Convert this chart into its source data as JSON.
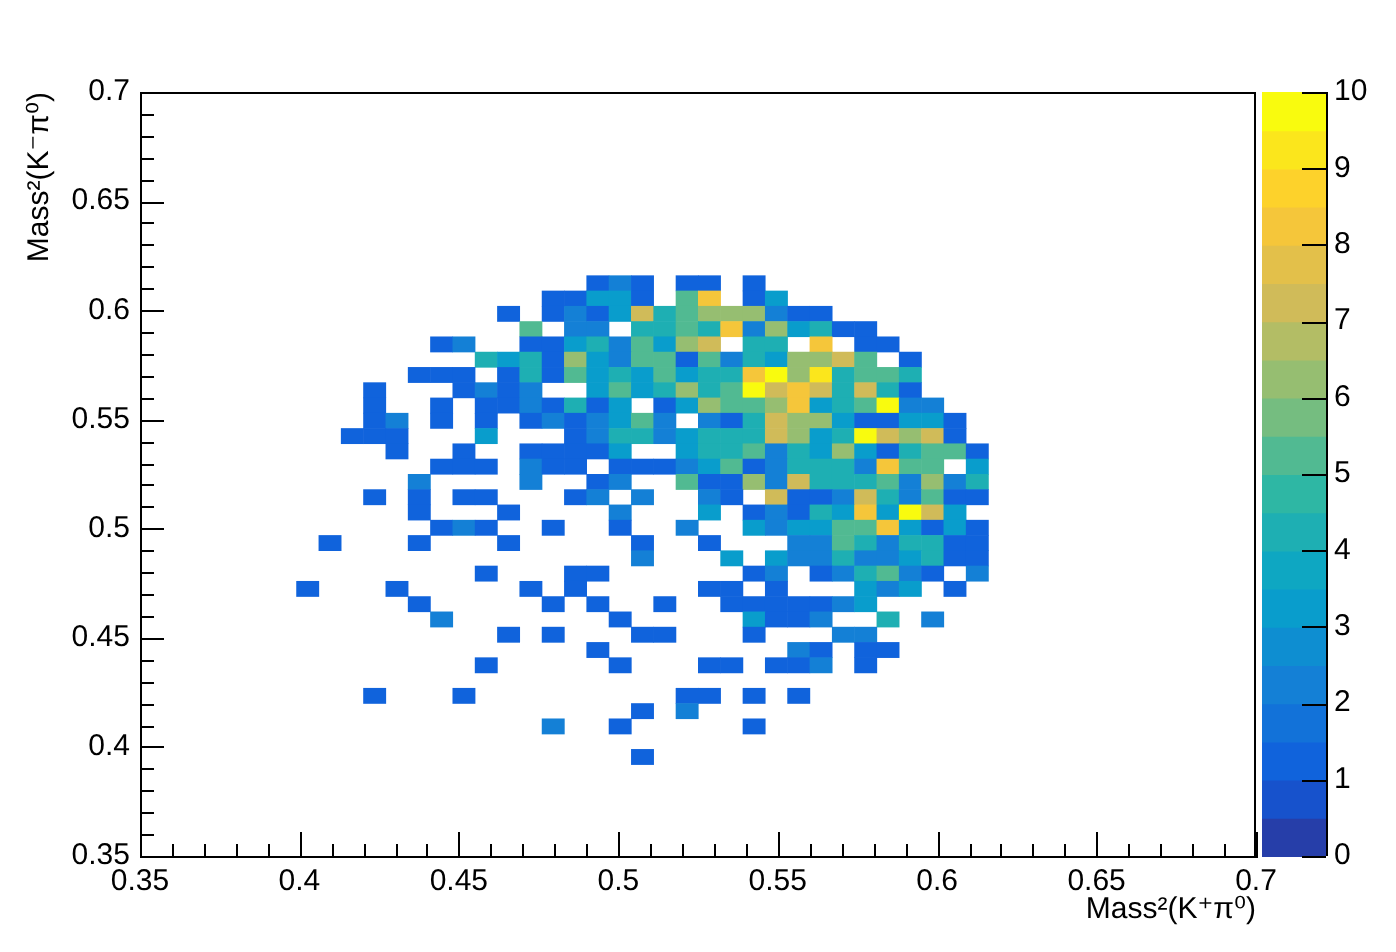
{
  "chart_data": {
    "type": "scatter",
    "marker": "square",
    "xlabel": "Mass²(K⁺π⁰)",
    "ylabel": "Mass²(K⁻π⁰)",
    "x": [
      0.4935,
      0.5005,
      0.5075,
      0.5215,
      0.5285,
      0.5425,
      0.4795,
      0.4865,
      0.4935,
      0.5005,
      0.5075,
      0.5215,
      0.5285,
      0.5425,
      0.5495,
      0.4655,
      0.4795,
      0.4865,
      0.4935,
      0.5005,
      0.5075,
      0.5145,
      0.5215,
      0.5285,
      0.5355,
      0.5425,
      0.5495,
      0.5565,
      0.5635,
      0.4725,
      0.4865,
      0.4935,
      0.5075,
      0.5145,
      0.5215,
      0.5285,
      0.5355,
      0.5425,
      0.5495,
      0.5565,
      0.5635,
      0.5705,
      0.5775,
      0.4445,
      0.4515,
      0.4725,
      0.4795,
      0.4865,
      0.4935,
      0.5005,
      0.5075,
      0.5145,
      0.5215,
      0.5285,
      0.5425,
      0.5495,
      0.5635,
      0.5775,
      0.5845,
      0.4585,
      0.4655,
      0.4725,
      0.4795,
      0.4865,
      0.4935,
      0.5005,
      0.5075,
      0.5145,
      0.5215,
      0.5285,
      0.5355,
      0.5425,
      0.5495,
      0.5565,
      0.5635,
      0.5705,
      0.5775,
      0.5915,
      0.4375,
      0.4445,
      0.4515,
      0.4655,
      0.4725,
      0.4795,
      0.4865,
      0.4935,
      0.5005,
      0.5075,
      0.5145,
      0.5215,
      0.5285,
      0.5355,
      0.5425,
      0.5495,
      0.5565,
      0.5635,
      0.5705,
      0.5775,
      0.5845,
      0.5915,
      0.4235,
      0.4515,
      0.4585,
      0.4655,
      0.4725,
      0.4935,
      0.5005,
      0.5075,
      0.5145,
      0.5215,
      0.5285,
      0.5355,
      0.5425,
      0.5495,
      0.5565,
      0.5635,
      0.5705,
      0.5775,
      0.5845,
      0.5915,
      0.4235,
      0.4445,
      0.4585,
      0.4655,
      0.4725,
      0.4795,
      0.4865,
      0.4935,
      0.5005,
      0.5145,
      0.5215,
      0.5285,
      0.5355,
      0.5425,
      0.5495,
      0.5565,
      0.5635,
      0.5705,
      0.5775,
      0.5845,
      0.5915,
      0.5985,
      0.4235,
      0.4305,
      0.4445,
      0.4585,
      0.4725,
      0.4795,
      0.4865,
      0.4935,
      0.5005,
      0.5075,
      0.5145,
      0.5285,
      0.5355,
      0.5425,
      0.5495,
      0.5565,
      0.5635,
      0.5705,
      0.5775,
      0.5845,
      0.5915,
      0.5985,
      0.6055,
      0.4165,
      0.4235,
      0.4305,
      0.4585,
      0.4865,
      0.4935,
      0.5005,
      0.5075,
      0.5145,
      0.5215,
      0.5285,
      0.5355,
      0.5425,
      0.5495,
      0.5565,
      0.5635,
      0.5705,
      0.5775,
      0.5845,
      0.5915,
      0.5985,
      0.6055,
      0.4305,
      0.4515,
      0.4725,
      0.4795,
      0.4865,
      0.4935,
      0.5005,
      0.5215,
      0.5285,
      0.5355,
      0.5425,
      0.5495,
      0.5565,
      0.5635,
      0.5705,
      0.5775,
      0.5845,
      0.5915,
      0.5985,
      0.6055,
      0.6125,
      0.4445,
      0.4515,
      0.4585,
      0.4725,
      0.4795,
      0.4865,
      0.5005,
      0.5075,
      0.5145,
      0.5215,
      0.5285,
      0.5355,
      0.5425,
      0.5495,
      0.5565,
      0.5635,
      0.5705,
      0.5775,
      0.5845,
      0.5915,
      0.5985,
      0.6125,
      0.4375,
      0.4725,
      0.4935,
      0.5005,
      0.5215,
      0.5285,
      0.5355,
      0.5425,
      0.5495,
      0.5565,
      0.5635,
      0.5705,
      0.5775,
      0.5845,
      0.5915,
      0.5985,
      0.6055,
      0.6125,
      0.4235,
      0.4375,
      0.4515,
      0.4585,
      0.4865,
      0.4935,
      0.5075,
      0.5285,
      0.5355,
      0.5495,
      0.5565,
      0.5635,
      0.5705,
      0.5775,
      0.5845,
      0.5915,
      0.5985,
      0.6055,
      0.6125,
      0.4375,
      0.4655,
      0.5005,
      0.5285,
      0.5425,
      0.5495,
      0.5565,
      0.5635,
      0.5705,
      0.5775,
      0.5845,
      0.5915,
      0.5985,
      0.6055,
      0.4445,
      0.4515,
      0.4585,
      0.4795,
      0.5005,
      0.5215,
      0.5425,
      0.5495,
      0.5565,
      0.5635,
      0.5705,
      0.5775,
      0.5845,
      0.5915,
      0.5985,
      0.6055,
      0.6125,
      0.4095,
      0.4375,
      0.4655,
      0.5075,
      0.5285,
      0.5565,
      0.5635,
      0.5705,
      0.5775,
      0.5845,
      0.5915,
      0.5985,
      0.6055,
      0.6125,
      0.5075,
      0.5355,
      0.5495,
      0.5565,
      0.5635,
      0.5705,
      0.5775,
      0.5845,
      0.5915,
      0.5985,
      0.6055,
      0.6125,
      0.4585,
      0.4865,
      0.4935,
      0.5425,
      0.5495,
      0.5635,
      0.5705,
      0.5775,
      0.5845,
      0.5915,
      0.5985,
      0.6125,
      0.4025,
      0.4305,
      0.4725,
      0.4865,
      0.5285,
      0.5355,
      0.5495,
      0.5775,
      0.5845,
      0.5915,
      0.6055,
      0.4375,
      0.4795,
      0.4935,
      0.5145,
      0.5355,
      0.5425,
      0.5495,
      0.5565,
      0.5635,
      0.5705,
      0.5775,
      0.4445,
      0.5005,
      0.5425,
      0.5495,
      0.5565,
      0.5635,
      0.5845,
      0.5985,
      0.4655,
      0.4795,
      0.5075,
      0.5145,
      0.5425,
      0.5705,
      0.5775,
      0.4935,
      0.5565,
      0.5635,
      0.5775,
      0.5845,
      0.4585,
      0.5005,
      0.5285,
      0.5355,
      0.5495,
      0.5565,
      0.5635,
      0.5775,
      0.4235,
      0.4515,
      0.5215,
      0.5285,
      0.5425,
      0.5565,
      0.5075,
      0.5215,
      0.4795,
      0.5005,
      0.5425,
      0.5075
    ],
    "values": [
      0.6125,
      0.6125,
      0.6125,
      0.6125,
      0.6125,
      0.6125,
      0.6055,
      0.6055,
      0.6055,
      0.6055,
      0.6055,
      0.6055,
      0.6055,
      0.6055,
      0.6055,
      0.5985,
      0.5985,
      0.5985,
      0.5985,
      0.5985,
      0.5985,
      0.5985,
      0.5985,
      0.5985,
      0.5985,
      0.5985,
      0.5985,
      0.5985,
      0.5985,
      0.5915,
      0.5915,
      0.5915,
      0.5915,
      0.5915,
      0.5915,
      0.5915,
      0.5915,
      0.5915,
      0.5915,
      0.5915,
      0.5915,
      0.5915,
      0.5915,
      0.5845,
      0.5845,
      0.5845,
      0.5845,
      0.5845,
      0.5845,
      0.5845,
      0.5845,
      0.5845,
      0.5845,
      0.5845,
      0.5845,
      0.5845,
      0.5845,
      0.5845,
      0.5845,
      0.5775,
      0.5775,
      0.5775,
      0.5775,
      0.5775,
      0.5775,
      0.5775,
      0.5775,
      0.5775,
      0.5775,
      0.5775,
      0.5775,
      0.5775,
      0.5775,
      0.5775,
      0.5775,
      0.5775,
      0.5775,
      0.5775,
      0.5705,
      0.5705,
      0.5705,
      0.5705,
      0.5705,
      0.5705,
      0.5705,
      0.5705,
      0.5705,
      0.5705,
      0.5705,
      0.5705,
      0.5705,
      0.5705,
      0.5705,
      0.5705,
      0.5705,
      0.5705,
      0.5705,
      0.5705,
      0.5705,
      0.5705,
      0.5635,
      0.5635,
      0.5635,
      0.5635,
      0.5635,
      0.5635,
      0.5635,
      0.5635,
      0.5635,
      0.5635,
      0.5635,
      0.5635,
      0.5635,
      0.5635,
      0.5635,
      0.5635,
      0.5635,
      0.5635,
      0.5635,
      0.5635,
      0.5565,
      0.5565,
      0.5565,
      0.5565,
      0.5565,
      0.5565,
      0.5565,
      0.5565,
      0.5565,
      0.5565,
      0.5565,
      0.5565,
      0.5565,
      0.5565,
      0.5565,
      0.5565,
      0.5565,
      0.5565,
      0.5565,
      0.5565,
      0.5565,
      0.5565,
      0.5495,
      0.5495,
      0.5495,
      0.5495,
      0.5495,
      0.5495,
      0.5495,
      0.5495,
      0.5495,
      0.5495,
      0.5495,
      0.5495,
      0.5495,
      0.5495,
      0.5495,
      0.5495,
      0.5495,
      0.5495,
      0.5495,
      0.5495,
      0.5495,
      0.5495,
      0.5495,
      0.5425,
      0.5425,
      0.5425,
      0.5425,
      0.5425,
      0.5425,
      0.5425,
      0.5425,
      0.5425,
      0.5425,
      0.5425,
      0.5425,
      0.5425,
      0.5425,
      0.5425,
      0.5425,
      0.5425,
      0.5425,
      0.5425,
      0.5425,
      0.5425,
      0.5425,
      0.5355,
      0.5355,
      0.5355,
      0.5355,
      0.5355,
      0.5355,
      0.5355,
      0.5355,
      0.5355,
      0.5355,
      0.5355,
      0.5355,
      0.5355,
      0.5355,
      0.5355,
      0.5355,
      0.5355,
      0.5355,
      0.5355,
      0.5355,
      0.5355,
      0.5285,
      0.5285,
      0.5285,
      0.5285,
      0.5285,
      0.5285,
      0.5285,
      0.5285,
      0.5285,
      0.5285,
      0.5285,
      0.5285,
      0.5285,
      0.5285,
      0.5285,
      0.5285,
      0.5285,
      0.5285,
      0.5285,
      0.5285,
      0.5285,
      0.5285,
      0.5215,
      0.5215,
      0.5215,
      0.5215,
      0.5215,
      0.5215,
      0.5215,
      0.5215,
      0.5215,
      0.5215,
      0.5215,
      0.5215,
      0.5215,
      0.5215,
      0.5215,
      0.5215,
      0.5215,
      0.5215,
      0.5145,
      0.5145,
      0.5145,
      0.5145,
      0.5145,
      0.5145,
      0.5145,
      0.5145,
      0.5145,
      0.5145,
      0.5145,
      0.5145,
      0.5145,
      0.5145,
      0.5145,
      0.5145,
      0.5145,
      0.5145,
      0.5145,
      0.5075,
      0.5075,
      0.5075,
      0.5075,
      0.5075,
      0.5075,
      0.5075,
      0.5075,
      0.5075,
      0.5075,
      0.5075,
      0.5075,
      0.5075,
      0.5075,
      0.5005,
      0.5005,
      0.5005,
      0.5005,
      0.5005,
      0.5005,
      0.5005,
      0.5005,
      0.5005,
      0.5005,
      0.5005,
      0.5005,
      0.5005,
      0.5005,
      0.5005,
      0.5005,
      0.5005,
      0.4935,
      0.4935,
      0.4935,
      0.4935,
      0.4935,
      0.4935,
      0.4935,
      0.4935,
      0.4935,
      0.4935,
      0.4935,
      0.4935,
      0.4935,
      0.4935,
      0.4865,
      0.4865,
      0.4865,
      0.4865,
      0.4865,
      0.4865,
      0.4865,
      0.4865,
      0.4865,
      0.4865,
      0.4865,
      0.4865,
      0.4795,
      0.4795,
      0.4795,
      0.4795,
      0.4795,
      0.4795,
      0.4795,
      0.4795,
      0.4795,
      0.4795,
      0.4795,
      0.4795,
      0.4725,
      0.4725,
      0.4725,
      0.4725,
      0.4725,
      0.4725,
      0.4725,
      0.4725,
      0.4725,
      0.4725,
      0.4725,
      0.4655,
      0.4655,
      0.4655,
      0.4655,
      0.4655,
      0.4655,
      0.4655,
      0.4655,
      0.4655,
      0.4655,
      0.4655,
      0.4585,
      0.4585,
      0.4585,
      0.4585,
      0.4585,
      0.4585,
      0.4585,
      0.4585,
      0.4515,
      0.4515,
      0.4515,
      0.4515,
      0.4515,
      0.4515,
      0.4515,
      0.4445,
      0.4445,
      0.4445,
      0.4445,
      0.4445,
      0.4375,
      0.4375,
      0.4375,
      0.4375,
      0.4375,
      0.4375,
      0.4375,
      0.4375,
      0.4235,
      0.4235,
      0.4235,
      0.4235,
      0.4235,
      0.4235,
      0.4165,
      0.4165,
      0.4095,
      0.4095,
      0.4095,
      0.3955
    ],
    "cvalues": [
      1,
      2,
      1,
      1,
      1,
      1,
      1,
      1,
      3,
      3,
      1,
      5,
      8,
      1,
      3,
      1,
      1,
      2,
      1,
      3,
      7,
      4,
      5,
      6,
      6,
      6,
      2,
      1,
      1,
      5,
      2,
      2,
      4,
      4,
      5,
      4,
      8,
      2,
      6,
      3,
      4,
      1,
      1,
      1,
      2,
      1,
      1,
      3,
      4,
      2,
      5,
      3,
      6,
      7,
      4,
      4,
      8,
      1,
      1,
      4,
      3,
      4,
      1,
      6,
      3,
      2,
      5,
      5,
      1,
      5,
      2,
      4,
      3,
      6,
      6,
      7,
      5,
      1,
      1,
      1,
      1,
      1,
      4,
      1,
      5,
      3,
      4,
      3,
      5,
      3,
      4,
      4,
      8,
      10,
      6,
      9,
      4,
      5,
      5,
      4,
      1,
      1,
      2,
      1,
      2,
      3,
      5,
      3,
      4,
      6,
      4,
      5,
      10,
      7,
      8,
      7,
      4,
      7,
      4,
      1,
      1,
      1,
      1,
      1,
      2,
      1,
      4,
      1,
      3,
      1,
      3,
      6,
      5,
      5,
      6,
      8,
      3,
      4,
      5,
      10,
      2,
      2,
      1,
      2,
      1,
      1,
      1,
      2,
      1,
      2,
      3,
      5,
      2,
      2,
      1,
      4,
      7,
      6,
      6,
      3,
      1,
      1,
      3,
      3,
      1,
      1,
      1,
      1,
      3,
      1,
      2,
      4,
      4,
      2,
      3,
      4,
      4,
      4,
      7,
      6,
      3,
      4,
      10,
      7,
      6,
      7,
      1,
      1,
      1,
      1,
      1,
      1,
      1,
      3,
      3,
      4,
      4,
      5,
      2,
      4,
      3,
      6,
      3,
      1,
      4,
      5,
      5,
      1,
      1,
      1,
      1,
      2,
      1,
      1,
      1,
      1,
      1,
      2,
      3,
      5,
      1,
      2,
      4,
      4,
      4,
      2,
      8,
      5,
      5,
      3,
      2,
      2,
      1,
      2,
      5,
      1,
      1,
      6,
      2,
      7,
      4,
      4,
      4,
      5,
      2,
      6,
      2,
      4,
      1,
      1,
      1,
      1,
      1,
      2,
      2,
      2,
      1,
      7,
      1,
      1,
      2,
      7,
      4,
      2,
      5,
      1,
      1,
      1,
      1,
      2,
      3,
      1,
      2,
      1,
      4,
      3,
      8,
      3,
      10,
      7,
      3,
      1,
      2,
      1,
      1,
      1,
      2,
      3,
      2,
      3,
      3,
      5,
      5,
      8,
      3,
      1,
      3,
      1,
      1,
      1,
      1,
      1,
      1,
      2,
      2,
      5,
      4,
      2,
      4,
      4,
      1,
      1,
      2,
      3,
      3,
      2,
      2,
      4,
      2,
      2,
      3,
      4,
      1,
      1,
      1,
      1,
      1,
      1,
      2,
      1,
      2,
      4,
      5,
      2,
      1,
      2,
      1,
      1,
      1,
      1,
      1,
      1,
      1,
      3,
      2,
      3,
      1,
      1,
      1,
      1,
      1,
      1,
      1,
      1,
      1,
      1,
      2,
      3,
      2,
      1,
      3,
      1,
      1,
      2,
      4,
      2,
      1,
      1,
      1,
      1,
      1,
      2,
      2,
      1,
      2,
      1,
      1,
      1,
      1,
      1,
      1,
      1,
      1,
      1,
      2,
      1,
      1,
      1,
      1,
      1,
      1,
      1,
      1,
      2,
      2,
      1,
      1,
      1
    ],
    "xlim": [
      0.35,
      0.7
    ],
    "xticks": [
      0.35,
      {
        "value": 0.36,
        "label": null
      },
      {
        "value": 0.37,
        "label": null
      },
      {
        "value": 0.38,
        "label": null
      },
      {
        "value": 0.39,
        "label": null
      },
      0.4,
      {
        "value": 0.41,
        "label": null
      },
      {
        "value": 0.42,
        "label": null
      },
      {
        "value": 0.43,
        "label": null
      },
      {
        "value": 0.44,
        "label": null
      },
      0.45,
      {
        "value": 0.46,
        "label": null
      },
      {
        "value": 0.47,
        "label": null
      },
      {
        "value": 0.48,
        "label": null
      },
      {
        "value": 0.49,
        "label": null
      },
      0.5,
      {
        "value": 0.51,
        "label": null
      },
      {
        "value": 0.52,
        "label": null
      },
      {
        "value": 0.53,
        "label": null
      },
      {
        "value": 0.54,
        "label": null
      },
      0.55,
      {
        "value": 0.56,
        "label": null
      },
      {
        "value": 0.57,
        "label": null
      },
      {
        "value": 0.58,
        "label": null
      },
      {
        "value": 0.59,
        "label": null
      },
      0.6,
      {
        "value": 0.61,
        "label": null
      },
      {
        "value": 0.62,
        "label": null
      },
      {
        "value": 0.63,
        "label": null
      },
      {
        "value": 0.64,
        "label": null
      },
      0.65,
      {
        "value": 0.66,
        "label": null
      },
      {
        "value": 0.67,
        "label": null
      },
      {
        "value": 0.68,
        "label": null
      },
      {
        "value": 0.69,
        "label": null
      },
      0.7
    ],
    "ylim": [
      0.35,
      0.7
    ],
    "yticks": [
      0.35,
      {
        "value": 0.36,
        "label": null
      },
      {
        "value": 0.37,
        "label": null
      },
      {
        "value": 0.38,
        "label": null
      },
      {
        "value": 0.39,
        "label": null
      },
      0.4,
      {
        "value": 0.41,
        "label": null
      },
      {
        "value": 0.42,
        "label": null
      },
      {
        "value": 0.43,
        "label": null
      },
      {
        "value": 0.44,
        "label": null
      },
      0.45,
      {
        "value": 0.46,
        "label": null
      },
      {
        "value": 0.47,
        "label": null
      },
      {
        "value": 0.48,
        "label": null
      },
      {
        "value": 0.49,
        "label": null
      },
      0.5,
      {
        "value": 0.51,
        "label": null
      },
      {
        "value": 0.52,
        "label": null
      },
      {
        "value": 0.53,
        "label": null
      },
      {
        "value": 0.54,
        "label": null
      },
      0.55,
      {
        "value": 0.56,
        "label": null
      },
      {
        "value": 0.57,
        "label": null
      },
      {
        "value": 0.58,
        "label": null
      },
      {
        "value": 0.59,
        "label": null
      },
      0.6,
      {
        "value": 0.61,
        "label": null
      },
      {
        "value": 0.62,
        "label": null
      },
      {
        "value": 0.63,
        "label": null
      },
      {
        "value": 0.64,
        "label": null
      },
      0.65,
      {
        "value": 0.66,
        "label": null
      },
      {
        "value": 0.67,
        "label": null
      },
      {
        "value": 0.68,
        "label": null
      },
      {
        "value": 0.69,
        "label": null
      },
      0.7
    ],
    "clim": [
      0,
      10
    ],
    "cticks": [
      0,
      1,
      2,
      3,
      4,
      5,
      6,
      7,
      8,
      9,
      10
    ]
  }
}
